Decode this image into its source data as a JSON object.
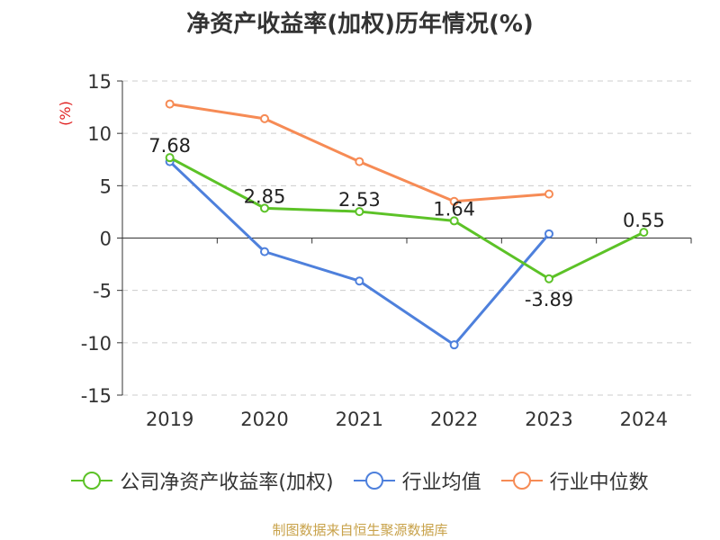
{
  "title": "净资产收益率(加权)历年情况(%)",
  "source": "制图数据来自恒生聚源数据库",
  "chart_data": {
    "type": "line",
    "title": "净资产收益率(加权)历年情况(%)",
    "ylabel": "(%)",
    "xlabel": "",
    "ylim": [
      -15,
      15
    ],
    "yticks": [
      -15,
      -10,
      -5,
      0,
      5,
      10,
      15
    ],
    "categories": [
      "2019",
      "2020",
      "2021",
      "2022",
      "2023",
      "2024"
    ],
    "series": [
      {
        "name": "公司净资产收益率(加权)",
        "color": "#5cc227",
        "values": [
          7.68,
          2.85,
          2.53,
          1.64,
          -3.89,
          0.55
        ],
        "labels": [
          "7.68",
          "2.85",
          "2.53",
          "1.64",
          "-3.89",
          "0.55"
        ]
      },
      {
        "name": "行业均值",
        "color": "#4e80dc",
        "values": [
          7.3,
          -1.3,
          -4.1,
          -10.2,
          0.4,
          null
        ]
      },
      {
        "name": "行业中位数",
        "color": "#f68b55",
        "values": [
          12.8,
          11.4,
          7.3,
          3.5,
          4.2,
          null
        ]
      }
    ],
    "grid": true,
    "legend_position": "bottom"
  }
}
